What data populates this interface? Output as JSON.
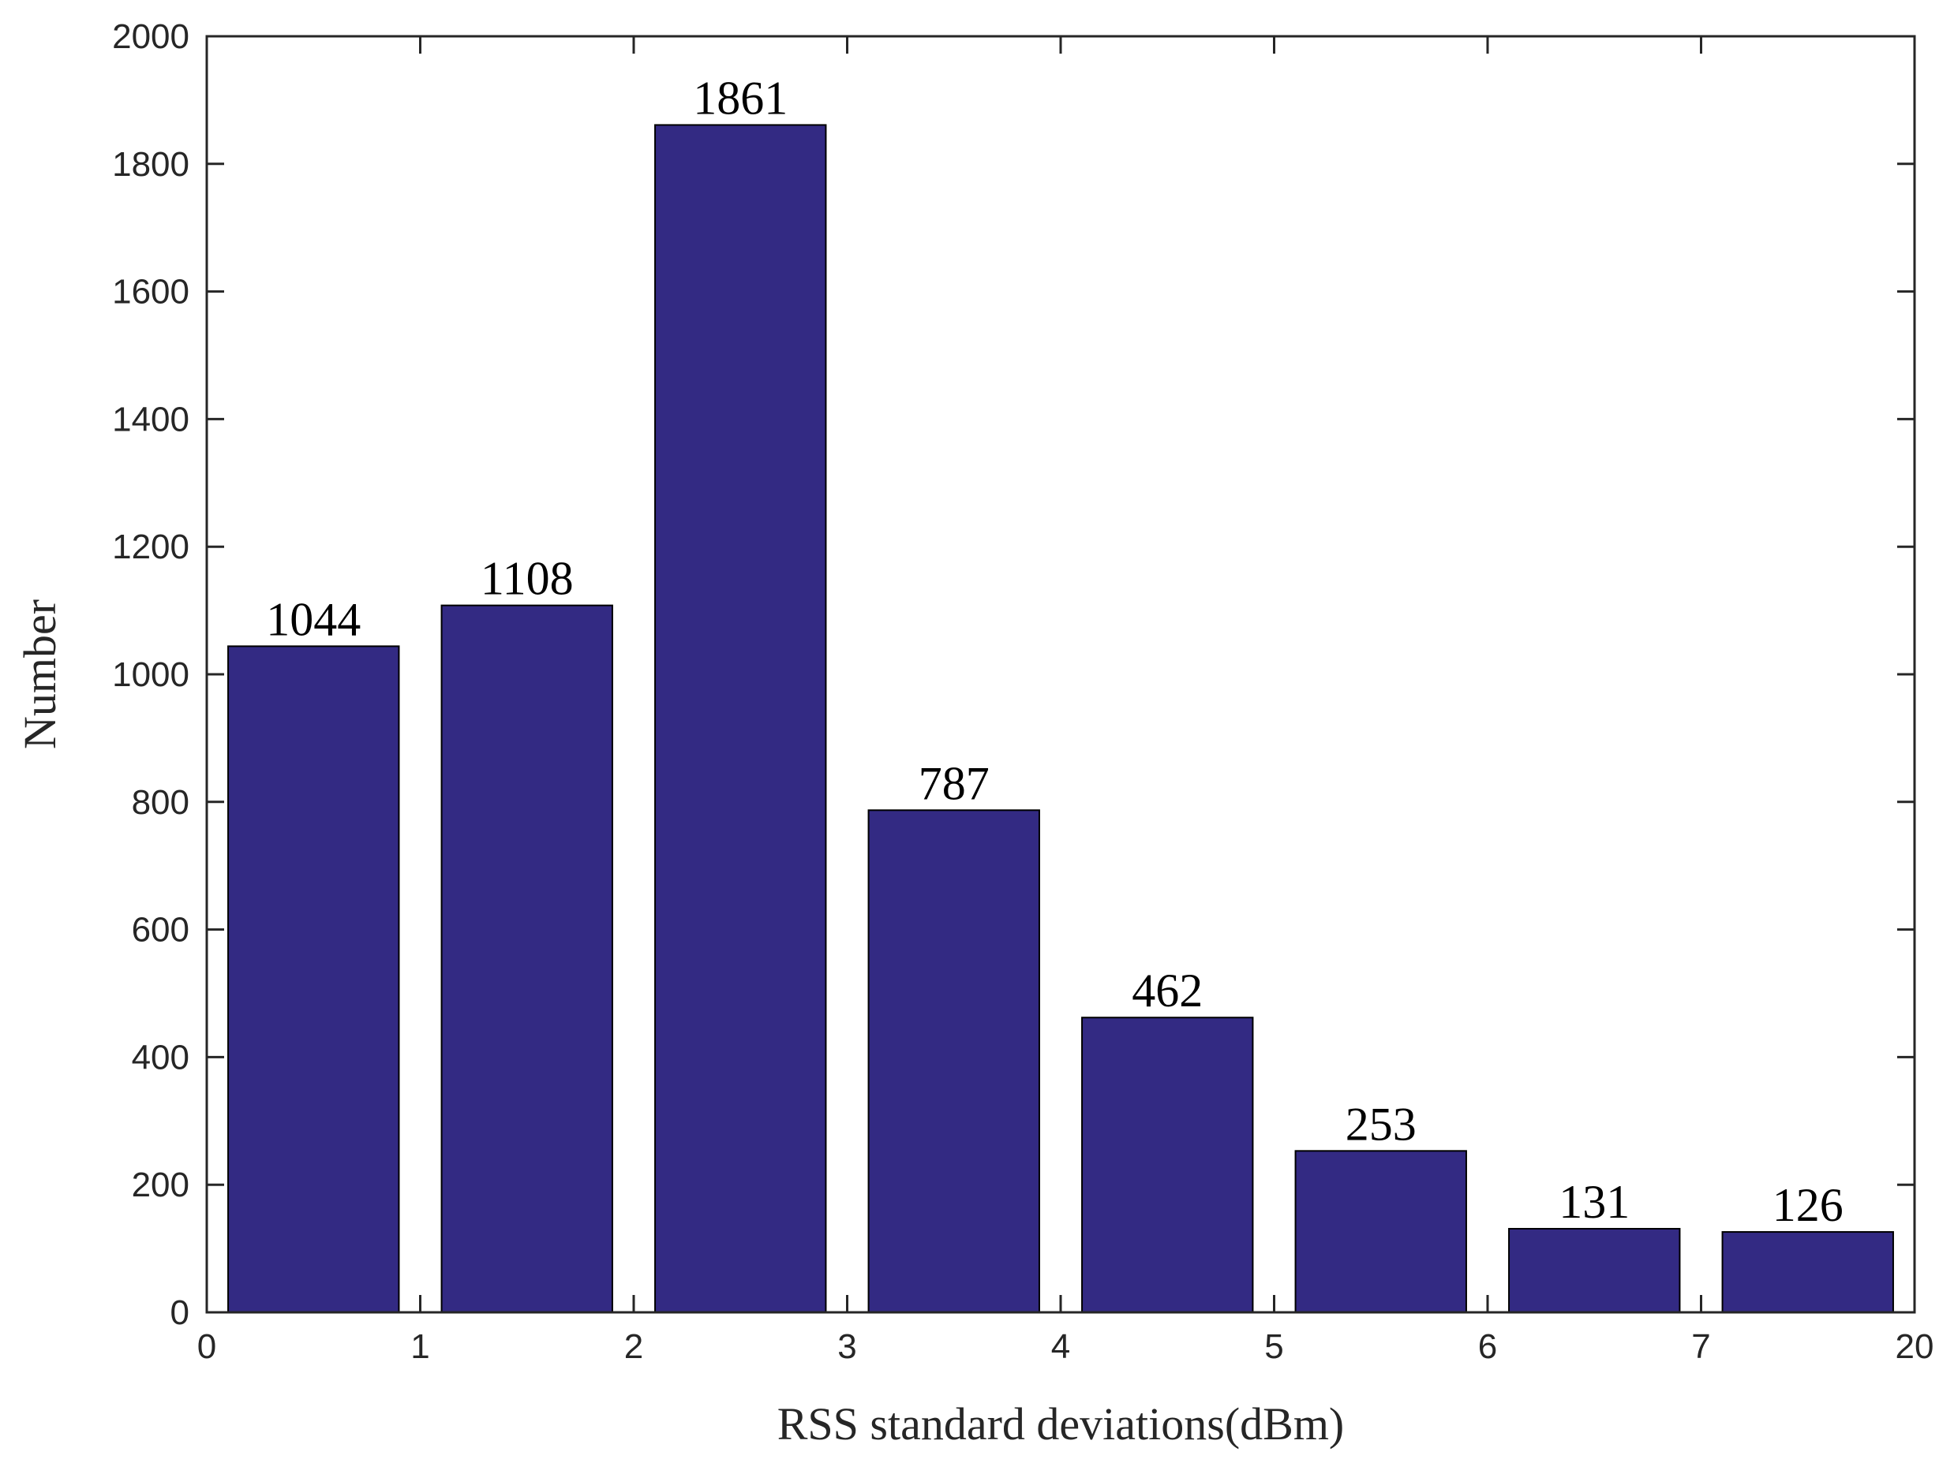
{
  "chart_data": {
    "type": "bar",
    "categories": [
      "0-1",
      "1-2",
      "2-3",
      "3-4",
      "4-5",
      "5-6",
      "6-7",
      "7-20"
    ],
    "values": [
      1044,
      1108,
      1861,
      787,
      462,
      253,
      131,
      126
    ],
    "data_labels": [
      "1044",
      "1108",
      "1861",
      "787",
      "462",
      "253",
      "131",
      "126"
    ],
    "xlabel": "RSS standard deviations(dBm)",
    "ylabel": "Number",
    "x_tick_labels": [
      "0",
      "1",
      "2",
      "3",
      "4",
      "5",
      "6",
      "7",
      "20"
    ],
    "y_tick_labels": [
      "0",
      "200",
      "400",
      "600",
      "800",
      "1000",
      "1200",
      "1400",
      "1600",
      "1800",
      "2000"
    ],
    "ylim": [
      0,
      2000
    ],
    "grid": false,
    "bar_color": "#332A83"
  }
}
